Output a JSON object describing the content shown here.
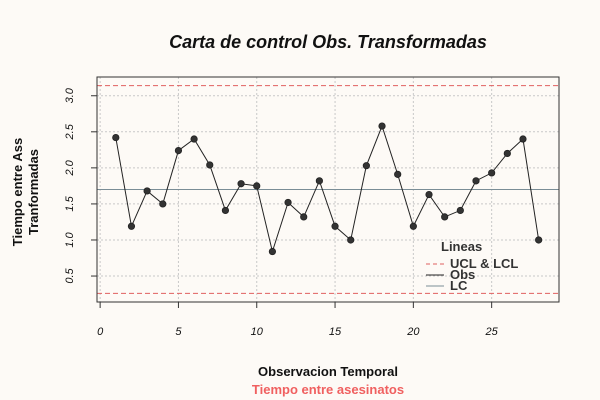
{
  "chart_data": {
    "type": "line",
    "title": "Carta de control Obs. Transformadas",
    "xlabel": "Observacion Temporal",
    "ylabel": [
      "Tiempo entre Ass",
      "Tranformadas"
    ],
    "subtitle": "Tiempo entre asesinatos",
    "xlim": [
      -0.2,
      29.3
    ],
    "ylim": [
      0.14,
      3.26
    ],
    "xticks": [
      0,
      5,
      10,
      15,
      20,
      25
    ],
    "xtick_labels": [
      "0",
      "5",
      "10",
      "15",
      "20",
      "25"
    ],
    "yticks": [
      0.5,
      1.0,
      1.5,
      2.0,
      2.5,
      3.0
    ],
    "ytick_labels": [
      "0.5",
      "1.0",
      "1.5",
      "2.0",
      "2.5",
      "3.0"
    ],
    "grid": true,
    "legend_placement": "bottom-right",
    "legend_title": "Lineas",
    "series": [
      {
        "name": "Obs",
        "color": "#222222",
        "x": [
          1,
          2,
          3,
          4,
          5,
          6,
          7,
          8,
          9,
          10,
          11,
          12,
          13,
          14,
          15,
          16,
          17,
          18,
          19,
          20,
          21,
          22,
          23,
          24,
          25,
          26,
          27,
          28
        ],
        "values": [
          2.42,
          1.19,
          1.68,
          1.5,
          2.24,
          2.4,
          2.04,
          1.41,
          1.78,
          1.75,
          0.84,
          1.52,
          1.32,
          1.82,
          1.19,
          1.0,
          2.03,
          2.58,
          1.91,
          1.19,
          1.63,
          1.32,
          1.41,
          1.82,
          1.93,
          2.2,
          2.4,
          1.0
        ]
      }
    ],
    "reference_lines": [
      {
        "name": "UCL & LCL",
        "values": [
          3.14,
          0.26
        ],
        "color": "#e06060",
        "style": "dashed"
      },
      {
        "name": "LC",
        "values": [
          1.7
        ],
        "color": "#7a8d96",
        "style": "solid"
      }
    ]
  }
}
